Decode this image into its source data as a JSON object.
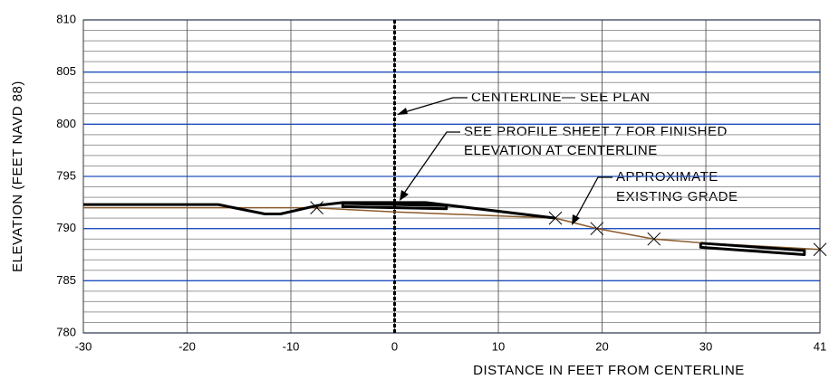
{
  "chart_data": {
    "type": "line",
    "xlabel": "DISTANCE IN FEET FROM CENTERLINE",
    "ylabel": "ELEVATION (FEET NAVD 88)",
    "xlim": [
      -30,
      41
    ],
    "ylim": [
      780,
      810
    ],
    "xticks": [
      -30,
      -20,
      -10,
      0,
      10,
      20,
      30,
      41
    ],
    "yticks": [
      780,
      785,
      790,
      795,
      800,
      805,
      810
    ],
    "grid": true,
    "minor_grid_step": 1,
    "series": [
      {
        "color": "#8b5a2b",
        "x": [
          -30,
          -8,
          0,
          15.5,
          19.5,
          25,
          30,
          41
        ],
        "values": [
          792,
          792,
          791.6,
          791,
          790,
          789,
          788.6,
          788
        ]
      },
      {
        "color": "#000000",
        "x": [
          -30,
          -17,
          -12.5,
          -11,
          -7.5,
          -5,
          3,
          15.5
        ],
        "values": [
          792.3,
          792.3,
          791.4,
          791.4,
          792.2,
          792.5,
          792.5,
          791
        ]
      },
      {
        "color": "#000000",
        "x": [
          -5,
          5,
          5,
          -5,
          -5
        ],
        "values": [
          792.4,
          792.2,
          791.9,
          792.1,
          792.4
        ]
      },
      {
        "color": "#000000",
        "x": [
          29.5,
          39.5,
          39.5,
          29.5,
          29.5
        ],
        "values": [
          788.6,
          787.9,
          787.5,
          788.2,
          788.6
        ]
      },
      {
        "color": "#000000",
        "marker": "x",
        "x": [
          -7.5,
          15.5,
          19.5,
          25,
          41
        ],
        "values": [
          792,
          791,
          790,
          789,
          788
        ]
      }
    ],
    "annotations": [
      "CENTERLINE— SEE PLAN",
      "SEE PROFILE SHEET 7 FOR FINISHED",
      "ELEVATION AT CENTERLINE",
      "APPROXIMATE",
      "EXISTING GRADE"
    ]
  }
}
